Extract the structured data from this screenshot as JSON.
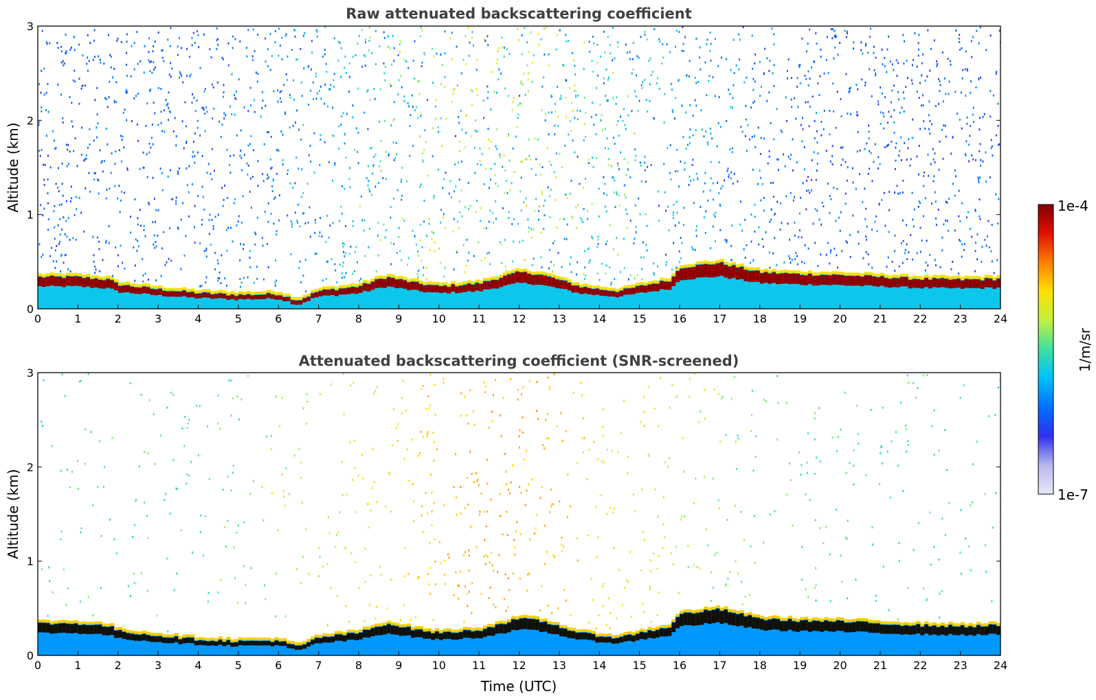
{
  "chart_data": [
    {
      "type": "heatmap",
      "title": "Raw attenuated backscattering coefficient",
      "xlabel": "",
      "ylabel": "Altitude (km)",
      "xlim": [
        0,
        24
      ],
      "ylim": [
        0,
        3
      ],
      "x_ticks": [
        "0",
        "1",
        "2",
        "3",
        "4",
        "5",
        "6",
        "7",
        "8",
        "9",
        "10",
        "11",
        "12",
        "13",
        "14",
        "15",
        "16",
        "17",
        "18",
        "19",
        "20",
        "21",
        "22",
        "23",
        "24"
      ],
      "y_ticks": [
        "0",
        "1",
        "2",
        "3"
      ],
      "layer_top_km": {
        "time_utc": [
          0,
          1,
          1.8,
          2,
          3,
          4,
          5,
          6,
          6.5,
          7,
          8,
          8.7,
          9.5,
          10,
          11,
          12,
          12.5,
          13,
          13.5,
          14,
          14.5,
          15,
          15.8,
          16,
          17,
          18,
          19,
          20,
          21,
          22,
          23,
          24
        ],
        "altitude_km": [
          0.35,
          0.35,
          0.32,
          0.27,
          0.22,
          0.18,
          0.16,
          0.17,
          0.1,
          0.2,
          0.25,
          0.35,
          0.28,
          0.25,
          0.28,
          0.4,
          0.38,
          0.32,
          0.25,
          0.22,
          0.2,
          0.25,
          0.32,
          0.45,
          0.5,
          0.4,
          0.38,
          0.37,
          0.35,
          0.33,
          0.32,
          0.33
        ]
      },
      "log_scale": true,
      "grid": false
    },
    {
      "type": "heatmap",
      "title": "Attenuated backscattering coefficient (SNR-screened)",
      "xlabel": "Time (UTC)",
      "ylabel": "Altitude (km)",
      "xlim": [
        0,
        24
      ],
      "ylim": [
        0,
        3
      ],
      "x_ticks": [
        "0",
        "1",
        "2",
        "3",
        "4",
        "5",
        "6",
        "7",
        "8",
        "9",
        "10",
        "11",
        "12",
        "13",
        "14",
        "15",
        "16",
        "17",
        "18",
        "19",
        "20",
        "21",
        "22",
        "23",
        "24"
      ],
      "y_ticks": [
        "0",
        "1",
        "2",
        "3"
      ],
      "layer_top_km": {
        "time_utc": [
          0,
          1,
          1.8,
          2,
          3,
          4,
          5,
          6,
          6.5,
          7,
          8,
          8.7,
          9.5,
          10,
          11,
          12,
          12.5,
          13,
          13.5,
          14,
          14.5,
          15,
          15.8,
          16,
          17,
          18,
          19,
          20,
          21,
          22,
          23,
          24
        ],
        "altitude_km": [
          0.35,
          0.35,
          0.32,
          0.27,
          0.22,
          0.18,
          0.16,
          0.17,
          0.1,
          0.2,
          0.25,
          0.35,
          0.28,
          0.25,
          0.28,
          0.4,
          0.38,
          0.32,
          0.25,
          0.22,
          0.2,
          0.25,
          0.32,
          0.45,
          0.5,
          0.4,
          0.38,
          0.37,
          0.35,
          0.33,
          0.32,
          0.33
        ]
      },
      "log_scale": true,
      "grid": false
    }
  ],
  "colorbar": {
    "label": "1/m/sr",
    "max_label": "1e-4",
    "min_label": "1e-7",
    "scale": "log",
    "colors": [
      "#e8e8f8",
      "#b8b8ee",
      "#3030f0",
      "#0070ff",
      "#00c0ff",
      "#40e0a0",
      "#c0f040",
      "#ffe000",
      "#ff8000",
      "#e01000",
      "#800000"
    ]
  }
}
